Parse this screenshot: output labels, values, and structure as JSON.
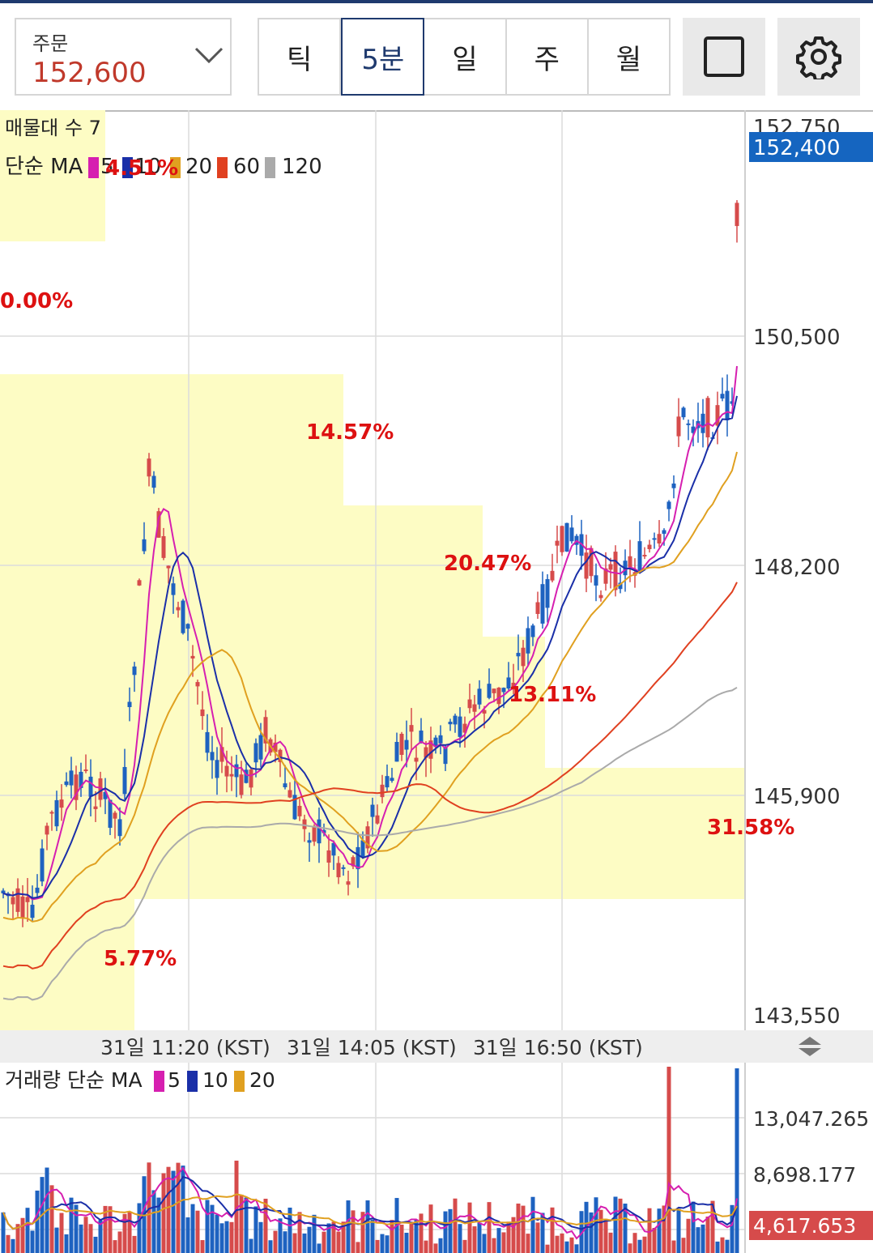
{
  "header": {
    "order_label": "주문",
    "order_price": "152,600",
    "tabs": [
      "틱",
      "5분",
      "일",
      "주",
      "월"
    ],
    "active_tab": "5분"
  },
  "price_chart": {
    "legend_line1": "매물대 수 7",
    "legend_ma_label": "단순 MA",
    "ma_periods": [
      "5",
      "10",
      "20",
      "60",
      "120"
    ],
    "ma_colors": [
      "#d61fb0",
      "#1a2fa8",
      "#e0a020",
      "#e04020",
      "#aaaaaa"
    ],
    "y_axis_labels": [
      "152,750",
      "150,500",
      "148,200",
      "145,900",
      "143,550"
    ],
    "current_price_tag": "152,400",
    "volume_profile_pcts": [
      "4.51%",
      "0.00%",
      "14.57%",
      "20.47%",
      "13.11%",
      "31.58%",
      "5.77%"
    ],
    "time_labels": [
      "31일 11:20 (KST)",
      "31일 14:05 (KST)",
      "31일 16:50 (KST)"
    ]
  },
  "volume_chart": {
    "legend_label": "거래량 단순 MA",
    "ma_periods": [
      "5",
      "10",
      "20"
    ],
    "y_axis_labels": [
      "13,047.265",
      "8,698.177"
    ],
    "current_volume_tag": "4,617.653"
  },
  "icons": {
    "dropdown": "chevron-down-icon",
    "fullscreen": "square-icon",
    "settings": "gear-icon",
    "resize": "updown-arrows-icon"
  }
}
